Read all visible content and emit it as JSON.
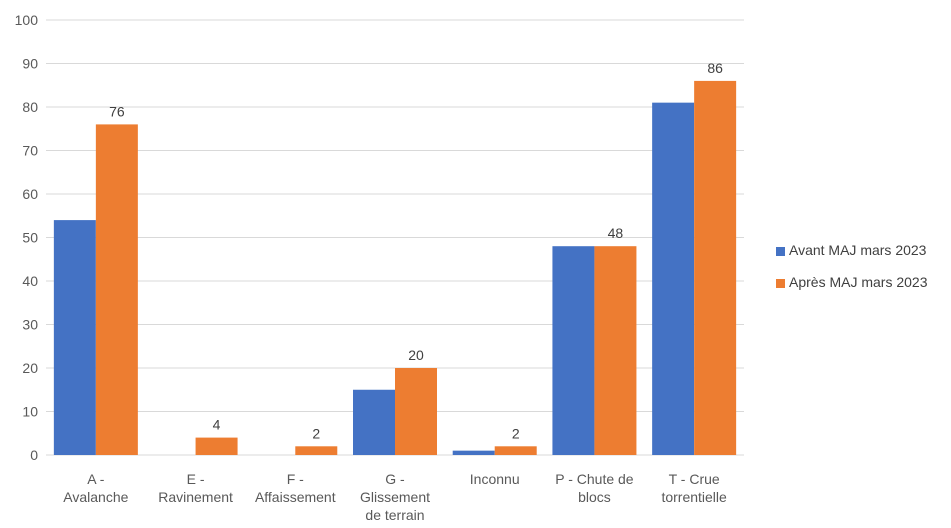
{
  "chart_data": {
    "type": "bar",
    "title": "",
    "xlabel": "",
    "ylabel": "",
    "ylim": [
      0,
      100
    ],
    "yticks": [
      0,
      10,
      20,
      30,
      40,
      50,
      60,
      70,
      80,
      90,
      100
    ],
    "grid": true,
    "legend_position": "right",
    "categories": [
      [
        "A -",
        "Avalanche"
      ],
      [
        "E -",
        "Ravinement"
      ],
      [
        "F -",
        "Affaissement"
      ],
      [
        "G -",
        "Glissement",
        "de terrain"
      ],
      [
        "Inconnu"
      ],
      [
        "P - Chute de",
        "blocs"
      ],
      [
        "T - Crue",
        "torrentielle"
      ]
    ],
    "series": [
      {
        "name": "Avant MAJ mars 2023",
        "color": "#4472C4",
        "values": [
          54,
          0,
          0,
          15,
          1,
          48,
          81
        ]
      },
      {
        "name": "Après MAJ mars 2023",
        "color": "#ED7D31",
        "values": [
          76,
          4,
          2,
          20,
          2,
          48,
          86
        ],
        "labels": [
          "76",
          "4",
          "2",
          "20",
          "2",
          "48",
          "86"
        ]
      }
    ]
  }
}
